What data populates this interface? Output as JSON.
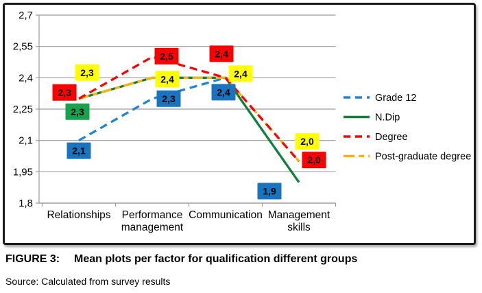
{
  "figure": {
    "caption_label": "FIGURE 3:",
    "caption_title": "Mean plots per factor for qualification different groups",
    "source": "Source: Calculated from survey results"
  },
  "chart_data": {
    "type": "line",
    "title": "",
    "categories": [
      "Relationships",
      "Performance management",
      "Communication",
      "Management skills"
    ],
    "category_label_lines": [
      [
        "Relationships"
      ],
      [
        "Performance",
        "management"
      ],
      [
        "Communication"
      ],
      [
        "Management",
        "skills"
      ]
    ],
    "ylim": [
      1.8,
      2.7
    ],
    "ytick_interval": 0.15,
    "ytick_labels": [
      "2,7",
      "2,55",
      "2,4",
      "2,25",
      "2,1",
      "1,95",
      "1,8"
    ],
    "grid": "horizontal",
    "legend_position": "right",
    "number_format": "decimal-comma",
    "axis_color": "#9a9a9a",
    "series": [
      {
        "name": "Grade 12",
        "line_style": "dashed",
        "line_color": "#1e86d4",
        "label_box_color": "#1a73be",
        "values": [
          2.1,
          2.3,
          2.4,
          1.9
        ]
      },
      {
        "name": "N.Dip",
        "line_style": "solid",
        "line_color": "#12813c",
        "label_box_color": "#17a24b",
        "values": [
          2.3,
          2.4,
          2.4,
          1.9
        ]
      },
      {
        "name": "Degree",
        "line_style": "dashed",
        "line_color": "#ff0000",
        "label_box_color": "#ff0000",
        "values": [
          2.3,
          2.5,
          2.4,
          2.0
        ]
      },
      {
        "name": "Post-graduate degree",
        "line_style": "long-dash",
        "line_color": "#ffb400",
        "label_box_color": "#ffff00",
        "values": [
          2.3,
          2.4,
          2.4,
          2.0
        ]
      }
    ],
    "data_labels": [
      {
        "series": 2,
        "category": 0,
        "text": "2,3"
      },
      {
        "series": 3,
        "category": 0,
        "text": "2,3"
      },
      {
        "series": 1,
        "category": 0,
        "text": "2,3"
      },
      {
        "series": 0,
        "category": 0,
        "text": "2,1"
      },
      {
        "series": 2,
        "category": 1,
        "text": "2,5"
      },
      {
        "series": 3,
        "category": 1,
        "text": "2,4"
      },
      {
        "series": 0,
        "category": 1,
        "text": "2,3"
      },
      {
        "series": 2,
        "category": 2,
        "text": "2,4"
      },
      {
        "series": 3,
        "category": 2,
        "text": "2,4"
      },
      {
        "series": 0,
        "category": 2,
        "text": "2,4"
      },
      {
        "series": 3,
        "category": 3,
        "text": "2,0"
      },
      {
        "series": 2,
        "category": 3,
        "text": "2,0"
      },
      {
        "series": 0,
        "category": 3,
        "text": "1,9"
      }
    ]
  }
}
